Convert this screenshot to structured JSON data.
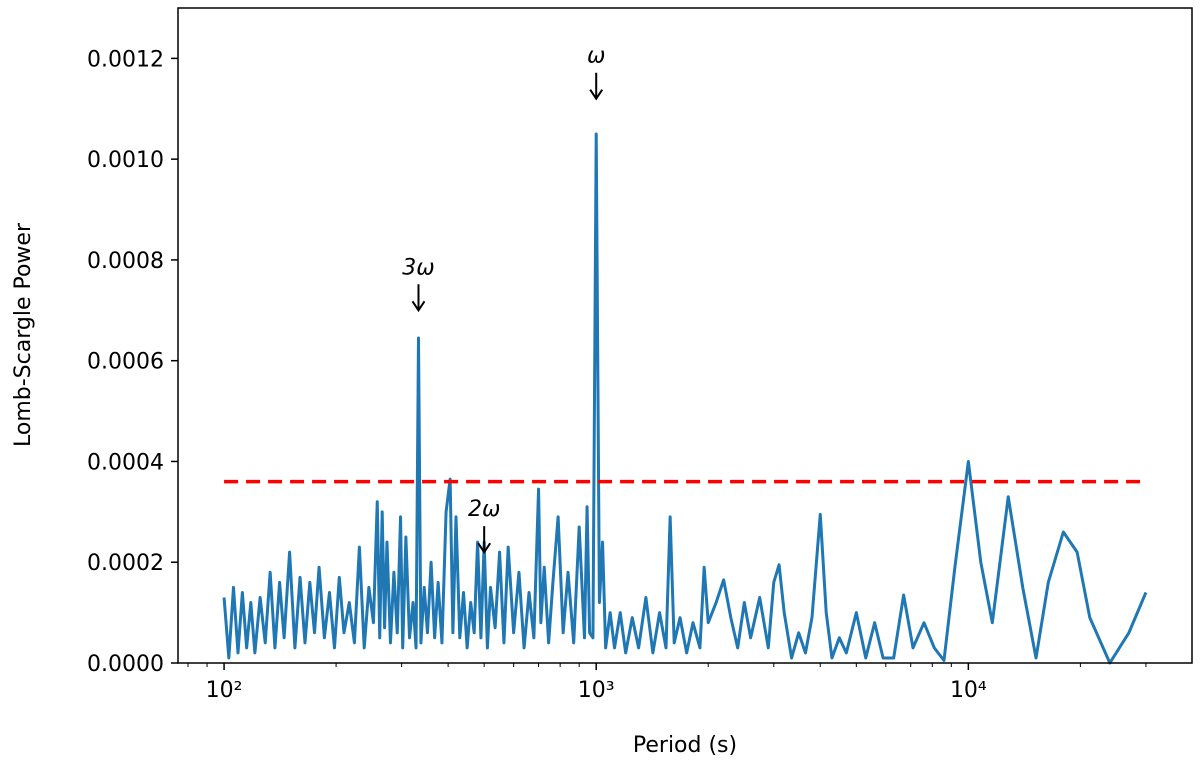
{
  "chart_data": {
    "type": "line",
    "xlabel": "Period (s)",
    "ylabel": "Lomb-Scargle Power",
    "xscale": "log",
    "xlim": [
      75.2,
      39900
    ],
    "ylim": [
      0,
      0.0013
    ],
    "xticks": [
      {
        "value": 100,
        "label": "10²"
      },
      {
        "value": 1000,
        "label": "10³"
      },
      {
        "value": 10000,
        "label": "10⁴"
      }
    ],
    "xminorticks": [
      80,
      90,
      200,
      300,
      400,
      500,
      600,
      700,
      800,
      900,
      2000,
      3000,
      4000,
      5000,
      6000,
      7000,
      8000,
      9000,
      20000,
      30000
    ],
    "yticks": [
      {
        "value": 0,
        "label": "0.0000"
      },
      {
        "value": 0.0002,
        "label": "0.0002"
      },
      {
        "value": 0.0004,
        "label": "0.0004"
      },
      {
        "value": 0.0006,
        "label": "0.0006"
      },
      {
        "value": 0.0008,
        "label": "0.0008"
      },
      {
        "value": 0.001,
        "label": "0.0010"
      },
      {
        "value": 0.0012,
        "label": "0.0012"
      }
    ],
    "x": [
      100,
      103,
      106,
      109,
      112,
      115,
      118,
      121,
      125,
      129,
      133,
      137,
      141,
      145,
      150,
      155,
      160,
      165,
      170,
      175,
      180,
      186,
      192,
      198,
      204,
      210,
      217,
      224,
      231,
      238,
      245,
      252,
      258,
      262,
      266,
      270,
      274,
      280,
      286,
      292,
      298,
      302,
      308,
      315,
      322,
      328,
      333,
      338,
      345,
      352,
      360,
      368,
      376,
      385,
      395,
      405,
      412,
      420,
      430,
      440,
      450,
      460,
      470,
      480,
      490,
      500,
      510,
      520,
      535,
      550,
      565,
      580,
      600,
      620,
      640,
      660,
      680,
      700,
      710,
      725,
      745,
      765,
      790,
      815,
      840,
      870,
      900,
      930,
      945,
      960,
      980,
      1000,
      1020,
      1040,
      1060,
      1090,
      1120,
      1160,
      1200,
      1250,
      1300,
      1360,
      1420,
      1480,
      1540,
      1580,
      1620,
      1680,
      1750,
      1820,
      1900,
      1950,
      2000,
      2100,
      2200,
      2300,
      2400,
      2500,
      2600,
      2750,
      2900,
      3000,
      3100,
      3200,
      3350,
      3500,
      3650,
      3800,
      4000,
      4150,
      4300,
      4500,
      4700,
      5000,
      5300,
      5600,
      5900,
      6300,
      6700,
      7100,
      7600,
      8100,
      8600,
      9200,
      10000,
      10800,
      11600,
      12800,
      14000,
      15200,
      16400,
      18000,
      19600,
      21200,
      24000,
      27000,
      30000
    ],
    "series": [
      {
        "color": "#1f77b4",
        "values": [
          0.00013,
          1e-05,
          0.00015,
          2e-05,
          0.00014,
          3e-05,
          0.00012,
          2e-05,
          0.00013,
          4e-05,
          0.00018,
          3e-05,
          0.00016,
          5e-05,
          0.00022,
          3e-05,
          0.00017,
          4e-05,
          0.00016,
          6e-05,
          0.00019,
          5e-05,
          0.00014,
          3e-05,
          0.00017,
          6e-05,
          0.00012,
          4e-05,
          0.00023,
          3e-05,
          0.00015,
          8e-05,
          0.00032,
          5e-05,
          0.0003,
          7e-05,
          0.00024,
          4e-05,
          0.00018,
          6e-05,
          0.00029,
          3e-05,
          0.00025,
          5e-05,
          0.00012,
          3e-05,
          0.000645,
          4e-05,
          0.00015,
          6e-05,
          0.0002,
          5e-05,
          0.00016,
          4e-05,
          0.0003,
          0.000365,
          6e-05,
          0.00029,
          5e-05,
          0.00014,
          3e-05,
          0.00012,
          6e-05,
          0.00024,
          5e-05,
          0.00024,
          3e-05,
          0.00015,
          7e-05,
          0.00022,
          4e-05,
          0.00023,
          6e-05,
          0.00018,
          3e-05,
          0.00014,
          5e-05,
          0.000345,
          8e-05,
          0.00019,
          4e-05,
          0.00016,
          0.00029,
          6e-05,
          0.00018,
          4e-05,
          0.00027,
          5e-05,
          0.00031,
          6e-05,
          5e-05,
          0.00105,
          0.00012,
          0.00024,
          3e-05,
          0.0001,
          3e-05,
          0.0001,
          2e-05,
          9e-05,
          3e-05,
          0.00013,
          2e-05,
          0.0001,
          3e-05,
          0.00029,
          4e-05,
          9e-05,
          2e-05,
          8e-05,
          3e-05,
          0.00019,
          8e-05,
          0.00012,
          0.000165,
          9e-05,
          3e-05,
          0.00012,
          5e-05,
          0.00013,
          3e-05,
          0.00016,
          0.000195,
          0.0001,
          1e-05,
          6e-05,
          2e-05,
          9e-05,
          0.000295,
          0.0001,
          1e-05,
          5e-05,
          2e-05,
          0.0001,
          1e-05,
          8e-05,
          1e-05,
          1e-05,
          0.000135,
          3e-05,
          8e-05,
          3e-05,
          5e-06,
          0.00019,
          0.0004,
          0.0002,
          8e-05,
          0.00033,
          0.00015,
          1e-05,
          0.00016,
          0.00026,
          0.00022,
          9e-05,
          0,
          6e-05,
          0.00014
        ]
      }
    ],
    "threshold": {
      "value": 0.00036,
      "color": "#ff0000"
    },
    "annotations": [
      {
        "text": "ω",
        "x": 1000,
        "y": 0.00112
      },
      {
        "text": "3ω",
        "x": 333,
        "y": 0.0007
      },
      {
        "text": "2ω",
        "x": 500,
        "y": 0.00022
      }
    ]
  }
}
